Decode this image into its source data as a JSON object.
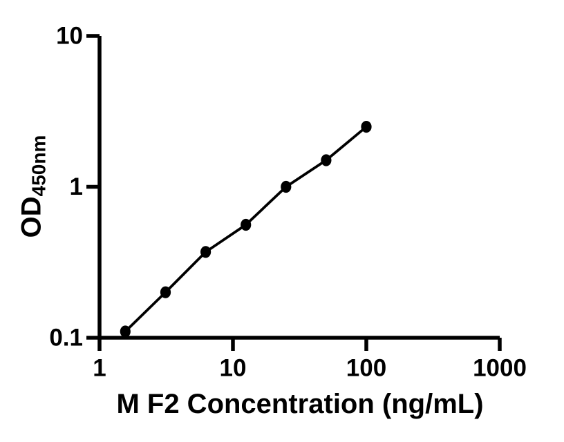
{
  "chart_data": {
    "type": "scatter",
    "title": "",
    "xlabel": "M F2 Concentration (ng/mL)",
    "ylabel": {
      "main": "OD",
      "sub": "450nm"
    },
    "xscale": "log",
    "yscale": "log",
    "xlim": [
      1,
      1000
    ],
    "ylim": [
      0.1,
      10
    ],
    "x_ticks": [
      {
        "value": 1,
        "label": "1"
      },
      {
        "value": 10,
        "label": "10"
      },
      {
        "value": 100,
        "label": "100"
      },
      {
        "value": 1000,
        "label": "1000"
      }
    ],
    "y_ticks": [
      {
        "value": 0.1,
        "label": "0.1"
      },
      {
        "value": 1,
        "label": "1"
      },
      {
        "value": 10,
        "label": "10"
      }
    ],
    "grid": false,
    "legend": false,
    "background": "#ffffff",
    "axis_color": "#000000",
    "series": [
      {
        "marker": "circle",
        "color": "#000000",
        "line": true,
        "points": [
          {
            "x": 1.56,
            "y": 0.11
          },
          {
            "x": 3.125,
            "y": 0.2
          },
          {
            "x": 6.25,
            "y": 0.37
          },
          {
            "x": 12.5,
            "y": 0.56
          },
          {
            "x": 25,
            "y": 1.0
          },
          {
            "x": 50,
            "y": 1.5
          },
          {
            "x": 100,
            "y": 2.5
          }
        ]
      }
    ]
  }
}
